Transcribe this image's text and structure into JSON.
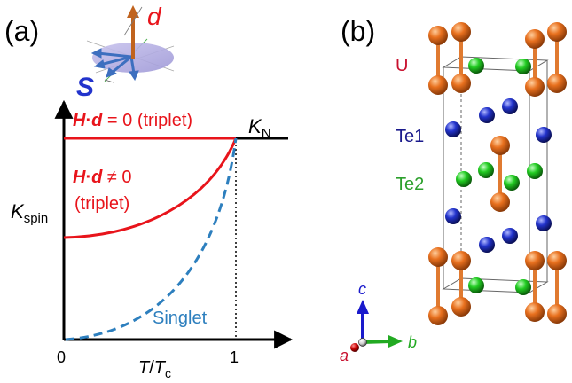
{
  "panel_a": {
    "label": "(a)",
    "vector_d": "d",
    "vector_s": "S",
    "curve_top": {
      "h": "H",
      "dot": "·",
      "d": "d",
      "rest": " = 0 (triplet)"
    },
    "curve_mid": {
      "h": "H",
      "dot": "·",
      "d": "d",
      "rest": " ≠ 0",
      "line2": "(triplet)"
    },
    "curve_singlet": "Singlet",
    "y_label": {
      "main": "K",
      "sub": "spin"
    },
    "kn_label": {
      "main": "K",
      "sub": "N"
    },
    "x_label": {
      "t": "T",
      "slash": "/",
      "tc": "T",
      "sub": "c"
    },
    "x_tick_0": "0",
    "x_tick_1": "1",
    "colors": {
      "triplet": "#e8141b",
      "singlet": "#2d7fbe",
      "d_arrow": "#c0631e",
      "s_arrow": "#3d6fbf",
      "axis": "#000000"
    }
  },
  "panel_b": {
    "label": "(b)",
    "atom_u": "U",
    "atom_te1": "Te1",
    "atom_te2": "Te2",
    "axis_c": "c",
    "axis_a": "a",
    "axis_b": "b",
    "colors": {
      "u": "#c8102e",
      "te1": "#1a1a8c",
      "te2": "#2ca02c",
      "u_atom": "#e8701e",
      "te1_atom": "#2233cc",
      "te2_atom": "#22cc22"
    }
  }
}
